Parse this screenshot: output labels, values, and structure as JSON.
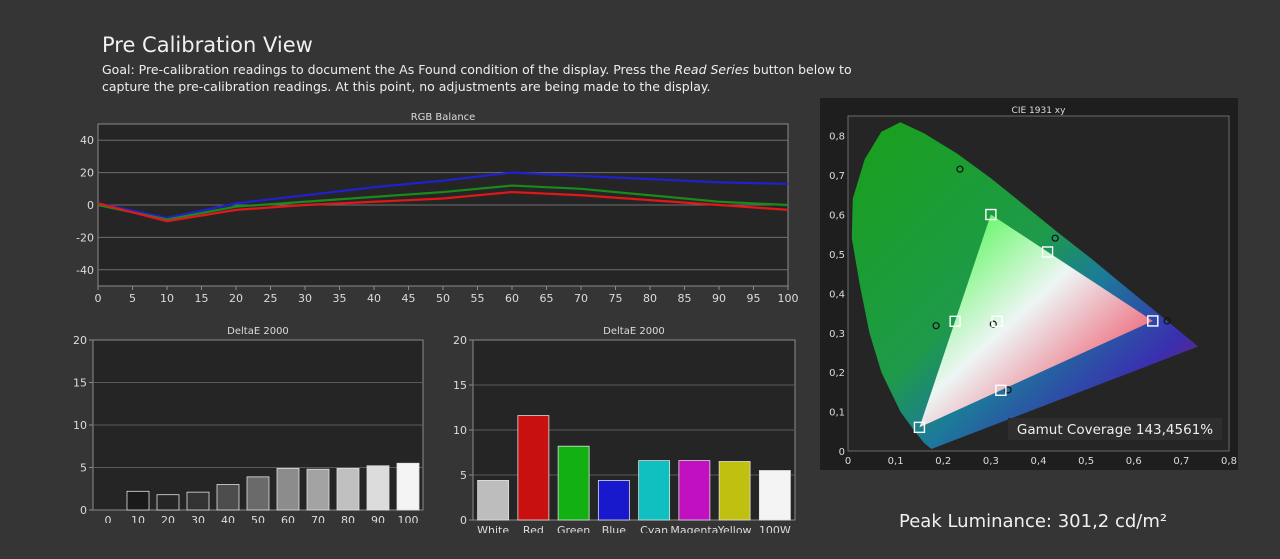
{
  "header": {
    "title": "Pre Calibration View",
    "desc_part1": "Goal: Pre-calibration readings to document the As Found condition of the display. Press the ",
    "desc_em": "Read Series",
    "desc_part2": " button below to capture the pre-calibration readings. At this point, no adjustments are being made to the display."
  },
  "peak_luminance": "Peak Luminance: 301,2 cd/m²",
  "chart_data": [
    {
      "type": "line",
      "title": "RGB Balance",
      "x": [
        0,
        10,
        20,
        30,
        40,
        50,
        60,
        70,
        80,
        90,
        100
      ],
      "xlim": [
        0,
        100
      ],
      "ylim": [
        -50,
        50
      ],
      "xticks": [
        0,
        5,
        10,
        15,
        20,
        25,
        30,
        35,
        40,
        45,
        50,
        55,
        60,
        65,
        70,
        75,
        80,
        85,
        90,
        95,
        100
      ],
      "yticks": [
        -40,
        -20,
        0,
        20,
        40
      ],
      "grid": true,
      "series": [
        {
          "color": "#2020d0",
          "values": [
            1,
            -8,
            1,
            6,
            11,
            15,
            20,
            18,
            16,
            14,
            13
          ]
        },
        {
          "color": "#1a8a1a",
          "values": [
            0,
            -9,
            -1,
            2,
            5,
            8,
            12,
            10,
            6,
            2,
            0
          ]
        },
        {
          "color": "#e01818",
          "values": [
            1,
            -10,
            -3,
            0,
            2,
            4,
            8,
            6,
            3,
            0,
            -3
          ]
        }
      ]
    },
    {
      "type": "bar",
      "title": "DeltaE 2000",
      "categories": [
        "0",
        "10",
        "20",
        "30",
        "40",
        "50",
        "60",
        "70",
        "80",
        "90",
        "100"
      ],
      "values": [
        0,
        2.2,
        1.8,
        2.1,
        3,
        3.9,
        4.9,
        4.8,
        4.9,
        5.2,
        5.5
      ],
      "ylim": [
        0,
        20
      ],
      "yticks": [
        0,
        5,
        10,
        15,
        20
      ],
      "colors": [
        "#000000",
        "#1a1a1a",
        "#262626",
        "#333333",
        "#4d4d4d",
        "#6a6a6a",
        "#8c8c8c",
        "#a3a3a3",
        "#c0c0c0",
        "#dcdcdc",
        "#f4f4f4"
      ]
    },
    {
      "type": "bar",
      "title": "DeltaE 2000",
      "categories": [
        "White",
        "Red",
        "Green",
        "Blue",
        "Cyan",
        "Magenta",
        "Yellow",
        "100W"
      ],
      "values": [
        4.4,
        11.6,
        8.2,
        4.4,
        6.6,
        6.6,
        6.5,
        5.5
      ],
      "ylim": [
        0,
        20
      ],
      "yticks": [
        0,
        5,
        10,
        15,
        20
      ],
      "colors": [
        "#bdbdbd",
        "#c81010",
        "#12b012",
        "#1818cc",
        "#10c0c0",
        "#c010c0",
        "#c0c010",
        "#f4f4f4"
      ]
    },
    {
      "type": "scatter",
      "title": "CIE 1931 xy",
      "xlim": [
        0,
        0.8
      ],
      "ylim": [
        0,
        0.85
      ],
      "xticks": [
        "0",
        "0,1",
        "0,2",
        "0,3",
        "0,4",
        "0,5",
        "0,6",
        "0,7",
        "0,8"
      ],
      "yticks": [
        "0",
        "0,1",
        "0,2",
        "0,3",
        "0,4",
        "0,5",
        "0,6",
        "0,7",
        "0,8"
      ],
      "gamut": [
        [
          0.64,
          0.33
        ],
        [
          0.3,
          0.6
        ],
        [
          0.15,
          0.06
        ]
      ],
      "measured": [
        [
          0.64,
          0.33
        ],
        [
          0.3,
          0.6
        ],
        [
          0.15,
          0.06
        ],
        [
          0.225,
          0.329
        ],
        [
          0.321,
          0.154
        ],
        [
          0.419,
          0.505
        ],
        [
          0.313,
          0.329
        ]
      ],
      "targets": [
        [
          0.67,
          0.33
        ],
        [
          0.235,
          0.715
        ],
        [
          0.185,
          0.318
        ],
        [
          0.336,
          0.155
        ],
        [
          0.435,
          0.54
        ],
        [
          0.305,
          0.322
        ]
      ],
      "annotation": "Gamut Coverage 143,4561%"
    }
  ]
}
